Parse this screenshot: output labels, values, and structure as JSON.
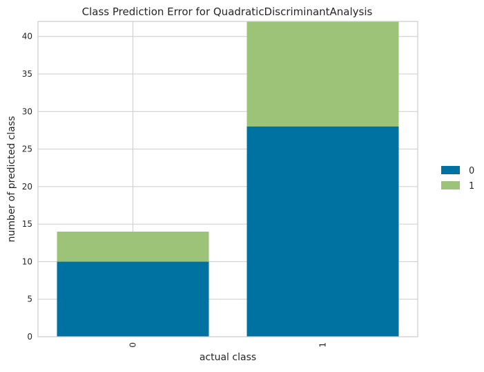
{
  "chart_data": {
    "type": "bar",
    "stacked": true,
    "title": "Class Prediction Error for QuadraticDiscriminantAnalysis",
    "xlabel": "actual class",
    "ylabel": "number of predicted class",
    "categories": [
      "0",
      "1"
    ],
    "series": [
      {
        "name": "0",
        "values": [
          10,
          28
        ],
        "color": "#0072A2"
      },
      {
        "name": "1",
        "values": [
          4,
          14
        ],
        "color": "#9DC378"
      }
    ],
    "ylim": [
      0,
      42
    ],
    "yticks": [
      0,
      5,
      10,
      15,
      20,
      25,
      30,
      35,
      40
    ],
    "grid": true,
    "legend_position": "right",
    "colors": {
      "grid": "#cccccc",
      "axis_text": "#262626"
    }
  }
}
